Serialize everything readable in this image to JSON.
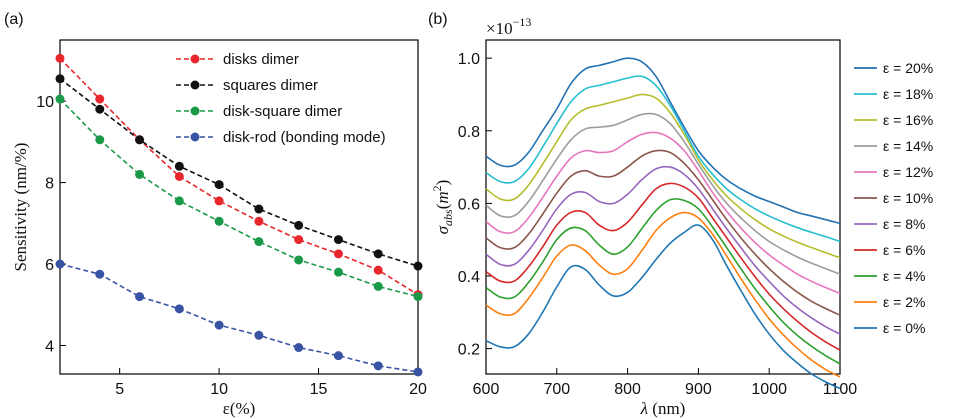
{
  "panel_a_label": "(a)",
  "panel_b_label": "(b)",
  "chart_data": [
    {
      "type": "line",
      "xlabel": "ε(%)",
      "ylabel": "Sensitivity (nm/%)",
      "xlim": [
        2,
        20
      ],
      "ylim": [
        3.3,
        11.5
      ],
      "xticks": [
        5,
        10,
        15,
        20
      ],
      "yticks": [
        4,
        6,
        8,
        10
      ],
      "legend_position": "top-right",
      "x": [
        2,
        4,
        6,
        8,
        10,
        12,
        14,
        16,
        18,
        20
      ],
      "series": [
        {
          "name": "disks dimer",
          "color": "#e8262b",
          "values": [
            11.05,
            10.05,
            9.05,
            8.15,
            7.55,
            7.05,
            6.6,
            6.25,
            5.85,
            5.25
          ]
        },
        {
          "name": "squares dimer",
          "color": "#111111",
          "values": [
            10.55,
            9.8,
            9.05,
            8.4,
            7.95,
            7.35,
            6.95,
            6.6,
            6.25,
            5.95
          ]
        },
        {
          "name": "disk-square dimer",
          "color": "#1a9a48",
          "values": [
            10.05,
            9.05,
            8.2,
            7.55,
            7.05,
            6.55,
            6.1,
            5.8,
            5.45,
            5.2
          ]
        },
        {
          "name": "disk-rod (bonding mode)",
          "color": "#3953a4",
          "values": [
            6.0,
            5.75,
            5.2,
            4.9,
            4.5,
            4.25,
            3.95,
            3.75,
            3.5,
            3.35
          ]
        }
      ]
    },
    {
      "type": "line",
      "xlabel": "λ (nm)",
      "ylabel": "σabs(m2)",
      "y_multiplier": "×10−13",
      "xlim": [
        600,
        1100
      ],
      "ylim": [
        0.13,
        1.05
      ],
      "xticks": [
        600,
        700,
        800,
        900,
        1000,
        1100
      ],
      "yticks": [
        0.2,
        0.4,
        0.6,
        0.8,
        1.0
      ],
      "ytick_labels": [
        "0.2",
        "0.4",
        "0.6",
        "0.8",
        "1.0"
      ],
      "legend_position": "right",
      "x": [
        600,
        620,
        640,
        660,
        680,
        700,
        720,
        740,
        760,
        780,
        800,
        820,
        840,
        860,
        880,
        900,
        920,
        940,
        960,
        980,
        1000,
        1020,
        1040,
        1060,
        1080,
        1100
      ],
      "series": [
        {
          "name": "ε = 20%",
          "color": "#2271b3",
          "values": [
            0.73,
            0.705,
            0.705,
            0.74,
            0.8,
            0.86,
            0.93,
            0.97,
            0.98,
            0.99,
            1.0,
            0.99,
            0.95,
            0.88,
            0.81,
            0.745,
            0.7,
            0.665,
            0.64,
            0.62,
            0.605,
            0.59,
            0.575,
            0.565,
            0.555,
            0.545
          ]
        },
        {
          "name": "ε = 18%",
          "color": "#26bfcf",
          "values": [
            0.685,
            0.66,
            0.66,
            0.695,
            0.755,
            0.82,
            0.88,
            0.915,
            0.925,
            0.935,
            0.945,
            0.95,
            0.925,
            0.87,
            0.8,
            0.73,
            0.68,
            0.64,
            0.61,
            0.585,
            0.565,
            0.548,
            0.533,
            0.52,
            0.508,
            0.495
          ]
        },
        {
          "name": "ε = 16%",
          "color": "#b5bd2d",
          "values": [
            0.64,
            0.612,
            0.612,
            0.65,
            0.708,
            0.77,
            0.83,
            0.86,
            0.87,
            0.88,
            0.89,
            0.9,
            0.89,
            0.85,
            0.79,
            0.72,
            0.665,
            0.62,
            0.585,
            0.555,
            0.53,
            0.51,
            0.493,
            0.478,
            0.464,
            0.45
          ]
        },
        {
          "name": "ε = 14%",
          "color": "#9c9c9c",
          "values": [
            0.595,
            0.566,
            0.566,
            0.605,
            0.662,
            0.722,
            0.775,
            0.805,
            0.81,
            0.815,
            0.83,
            0.845,
            0.845,
            0.82,
            0.77,
            0.708,
            0.65,
            0.6,
            0.56,
            0.525,
            0.495,
            0.472,
            0.452,
            0.435,
            0.42,
            0.405
          ]
        },
        {
          "name": "ε = 12%",
          "color": "#e677bd",
          "values": [
            0.55,
            0.522,
            0.522,
            0.56,
            0.616,
            0.675,
            0.725,
            0.745,
            0.74,
            0.745,
            0.77,
            0.79,
            0.795,
            0.78,
            0.745,
            0.69,
            0.63,
            0.578,
            0.532,
            0.492,
            0.458,
            0.43,
            0.405,
            0.385,
            0.368,
            0.352
          ]
        },
        {
          "name": "ε = 10%",
          "color": "#8b564b",
          "values": [
            0.505,
            0.478,
            0.478,
            0.515,
            0.57,
            0.628,
            0.675,
            0.69,
            0.675,
            0.675,
            0.7,
            0.73,
            0.745,
            0.74,
            0.71,
            0.665,
            0.61,
            0.555,
            0.505,
            0.46,
            0.42,
            0.385,
            0.355,
            0.33,
            0.31,
            0.292
          ]
        },
        {
          "name": "ε = 8%",
          "color": "#9467bd",
          "values": [
            0.46,
            0.432,
            0.432,
            0.47,
            0.525,
            0.585,
            0.625,
            0.63,
            0.605,
            0.6,
            0.625,
            0.665,
            0.695,
            0.7,
            0.68,
            0.64,
            0.585,
            0.53,
            0.478,
            0.428,
            0.385,
            0.345,
            0.312,
            0.284,
            0.26,
            0.24
          ]
        },
        {
          "name": "ε = 6%",
          "color": "#d62728",
          "values": [
            0.412,
            0.386,
            0.386,
            0.425,
            0.48,
            0.54,
            0.575,
            0.575,
            0.54,
            0.525,
            0.548,
            0.595,
            0.64,
            0.655,
            0.645,
            0.615,
            0.56,
            0.505,
            0.45,
            0.398,
            0.35,
            0.31,
            0.275,
            0.244,
            0.218,
            0.196
          ]
        },
        {
          "name": "ε = 4%",
          "color": "#2ca02c",
          "values": [
            0.368,
            0.342,
            0.342,
            0.382,
            0.438,
            0.5,
            0.532,
            0.525,
            0.485,
            0.46,
            0.48,
            0.53,
            0.58,
            0.61,
            0.608,
            0.585,
            0.535,
            0.478,
            0.42,
            0.365,
            0.316,
            0.272,
            0.236,
            0.206,
            0.18,
            0.158
          ]
        },
        {
          "name": "ε = 2%",
          "color": "#ff7f0e",
          "values": [
            0.32,
            0.296,
            0.296,
            0.338,
            0.395,
            0.455,
            0.485,
            0.47,
            0.43,
            0.405,
            0.42,
            0.47,
            0.525,
            0.56,
            0.575,
            0.56,
            0.515,
            0.455,
            0.393,
            0.335,
            0.282,
            0.238,
            0.2,
            0.168,
            0.142,
            0.122
          ]
        },
        {
          "name": "ε = 0%",
          "color": "#1f77b4",
          "values": [
            0.222,
            0.205,
            0.205,
            0.24,
            0.3,
            0.37,
            0.425,
            0.418,
            0.375,
            0.345,
            0.355,
            0.395,
            0.445,
            0.49,
            0.52,
            0.54,
            0.5,
            0.428,
            0.36,
            0.295,
            0.24,
            0.195,
            0.16,
            0.13,
            0.108,
            0.09
          ]
        }
      ]
    }
  ]
}
